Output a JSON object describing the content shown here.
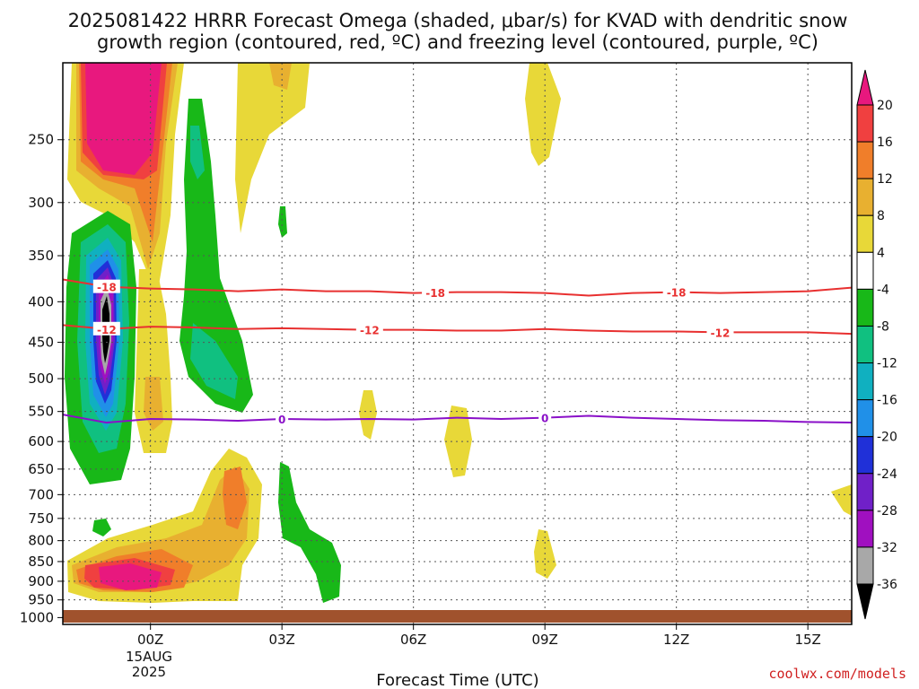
{
  "chart_data": {
    "type": "heatmap",
    "title_line1": "2025081422 HRRR Forecast Omega (shaded, μbar/s) for KVAD with dendritic snow",
    "title_line2": "growth region (contoured, red, ºC) and freezing level (contoured, purple, ºC)",
    "xlabel": "Forecast Time (UTC)",
    "x_ticks": [
      "00Z",
      "03Z",
      "06Z",
      "09Z",
      "12Z",
      "15Z"
    ],
    "x_date": [
      "15AUG",
      "2025"
    ],
    "xlim_hours": [
      -2,
      16
    ],
    "y_ticks": [
      250,
      300,
      350,
      400,
      450,
      500,
      550,
      600,
      650,
      700,
      750,
      800,
      850,
      900,
      950,
      1000
    ],
    "ylim_hPa": [
      200,
      1020
    ],
    "colorbar": {
      "labels": [
        "20",
        "16",
        "12",
        "8",
        "4",
        "-4",
        "-8",
        "-12",
        "-16",
        "-20",
        "-24",
        "-28",
        "-32",
        "-36"
      ],
      "colors": [
        "#e8187e",
        "#f04040",
        "#f07e2a",
        "#e8b030",
        "#e8d838",
        "#ffffff",
        "#18b818",
        "#10c080",
        "#10b0c0",
        "#2090e8",
        "#2030d8",
        "#7020c8",
        "#a010c0",
        "#a8a8a8",
        "#000000"
      ]
    },
    "omega_regions": [
      {
        "desc": "strong sinking aloft",
        "hours": [
          -1.8,
          0.4
        ],
        "hPa": [
          200,
          300
        ],
        "value": 20
      },
      {
        "desc": "strong rising core",
        "hours": [
          -1.3,
          -0.7
        ],
        "hPa": [
          380,
          510
        ],
        "value": -36
      },
      {
        "desc": "low-level sinking",
        "hours": [
          -1.8,
          0.5
        ],
        "hPa": [
          870,
          960
        ],
        "value": 20
      }
    ],
    "contours": {
      "dgz_red": [
        {
          "label": "-18",
          "hours": [
            -2,
            -1,
            0,
            1,
            2,
            3,
            4,
            5,
            6,
            7,
            8,
            9,
            10,
            11,
            12,
            13,
            14,
            15,
            16
          ],
          "hPa": [
            375,
            383,
            385,
            386,
            388,
            386,
            388,
            388,
            390,
            389,
            389,
            390,
            393,
            390,
            389,
            390,
            389,
            388,
            384
          ]
        },
        {
          "label": "-12",
          "hours": [
            -2,
            -1,
            0,
            1,
            2,
            3,
            4,
            5,
            6,
            7,
            8,
            9,
            10,
            11,
            12,
            13,
            14,
            15,
            16
          ],
          "hPa": [
            428,
            433,
            430,
            431,
            433,
            432,
            433,
            434,
            434,
            435,
            435,
            433,
            435,
            436,
            436,
            437,
            437,
            437,
            439
          ]
        }
      ],
      "freezing_purple": [
        {
          "label": "0",
          "hours": [
            -2,
            -1,
            0,
            1,
            2,
            3,
            4,
            5,
            6,
            7,
            8,
            9,
            10,
            11,
            12,
            13,
            14,
            15,
            16
          ],
          "hPa": [
            555,
            568,
            562,
            563,
            565,
            562,
            563,
            562,
            563,
            560,
            562,
            560,
            557,
            560,
            562,
            564,
            565,
            567,
            568
          ]
        }
      ],
      "red_label_positions_hours": [
        [
          -1,
          6.5,
          12
        ],
        [
          -1,
          5,
          13
        ]
      ],
      "purple_label_positions_hours": [
        3,
        9
      ]
    },
    "grid": true,
    "credit": "coolwx.com/models"
  }
}
